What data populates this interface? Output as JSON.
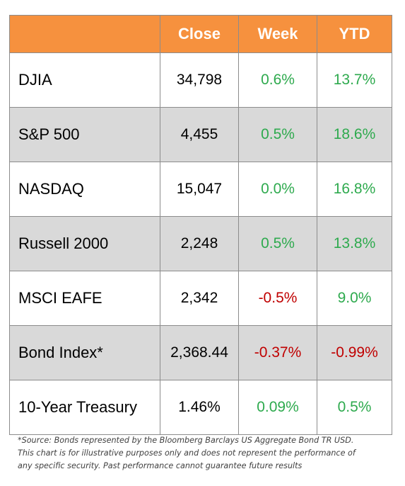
{
  "chart_data": {
    "type": "table",
    "columns": [
      "",
      "Close",
      "Week",
      "YTD"
    ],
    "rows": [
      {
        "name": "DJIA",
        "close": "34,798",
        "week": "0.6%",
        "ytd": "13.7%",
        "week_sign": "pos",
        "ytd_sign": "pos"
      },
      {
        "name": "S&P 500",
        "close": "4,455",
        "week": "0.5%",
        "ytd": "18.6%",
        "week_sign": "pos",
        "ytd_sign": "pos"
      },
      {
        "name": "NASDAQ",
        "close": "15,047",
        "week": "0.0%",
        "ytd": "16.8%",
        "week_sign": "pos",
        "ytd_sign": "pos"
      },
      {
        "name": "Russell 2000",
        "close": "2,248",
        "week": "0.5%",
        "ytd": "13.8%",
        "week_sign": "pos",
        "ytd_sign": "pos"
      },
      {
        "name": "MSCI EAFE",
        "close": "2,342",
        "week": "-0.5%",
        "ytd": "9.0%",
        "week_sign": "neg",
        "ytd_sign": "pos"
      },
      {
        "name": "Bond Index*",
        "close": "2,368.44",
        "week": "-0.37%",
        "ytd": "-0.99%",
        "week_sign": "neg",
        "ytd_sign": "neg"
      },
      {
        "name": "10-Year Treasury",
        "close": "1.46%",
        "week": "0.09%",
        "ytd": "0.5%",
        "week_sign": "pos",
        "ytd_sign": "pos"
      }
    ]
  },
  "footnote": {
    "line1": "*Source: Bonds represented by the Bloomberg Barclays US Aggregate Bond TR USD.",
    "line2": "This chart is for illustrative purposes only and does not represent the performance of",
    "line3": "any specific security. Past performance cannot guarantee future results"
  },
  "colors": {
    "header_bg": "#f6913e",
    "header_text": "#ffffff",
    "shaded_row": "#d9d9d9",
    "positive": "#2eaa4e",
    "negative": "#c00000",
    "border": "#8c8c8c"
  }
}
